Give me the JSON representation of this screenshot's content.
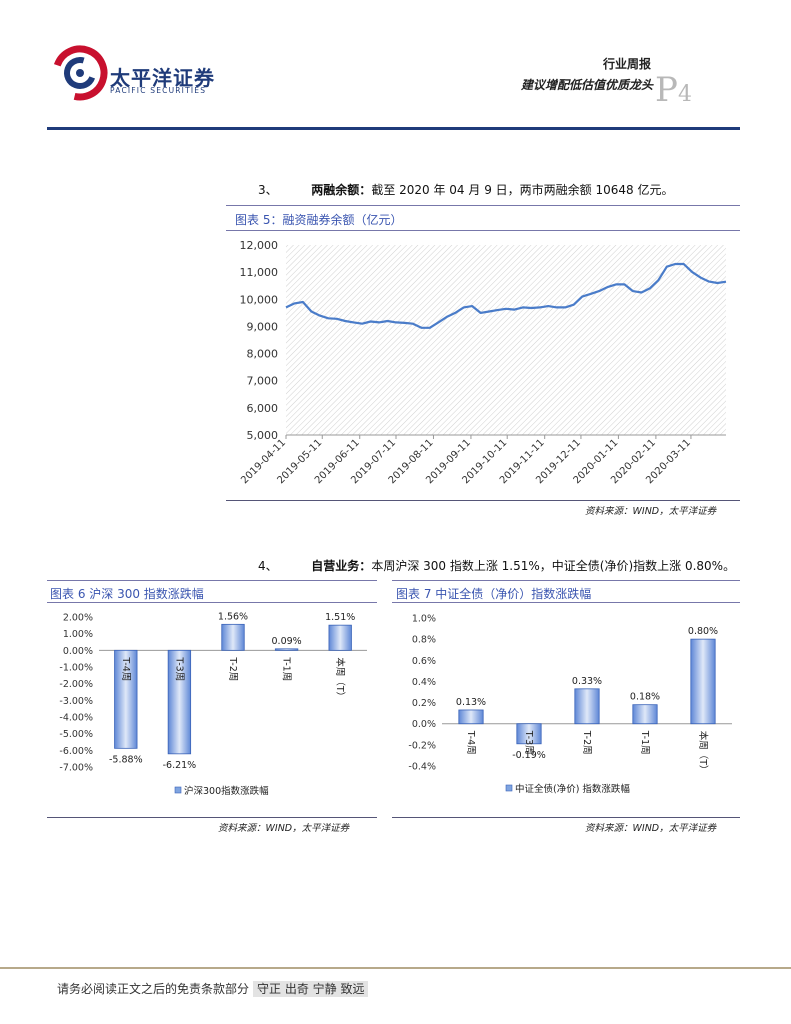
{
  "header": {
    "logo_cn": "太平洋证券",
    "logo_en": "PACIFIC SECURITIES",
    "report_type": "行业周报",
    "report_title": "建议增配低估值优质龙头",
    "page_prefix": "P",
    "page_number": "4"
  },
  "section3": {
    "number": "3、",
    "heading": "两融余额：",
    "text": "截至 2020 年 04 月 9 日，两市两融余额 10648 亿元。"
  },
  "figure5": {
    "title": "图表 5：融资融券余额（亿元）",
    "source": "资料来源：WIND，太平洋证券"
  },
  "section4": {
    "number": "4、",
    "heading": "自营业务：",
    "text": "本周沪深 300 指数上涨 1.51%，中证全债(净价)指数上涨 0.80%。"
  },
  "figure6": {
    "title": "图表 6  沪深 300 指数涨跌幅",
    "source": "资料来源：WIND，太平洋证券"
  },
  "figure7": {
    "title": "图表 7  中证全债（净价）指数涨跌幅",
    "source": "资料来源：WIND，太平洋证券"
  },
  "footer": {
    "disclaimer": "请务必阅读正文之后的免责条款部分",
    "slogan": "守正 出奇 宁静 致远"
  },
  "chart_data": [
    {
      "type": "line",
      "x_ticks": [
        "2019-04-11",
        "2019-05-11",
        "2019-06-11",
        "2019-07-11",
        "2019-08-11",
        "2019-09-11",
        "2019-10-11",
        "2019-11-11",
        "2019-12-11",
        "2020-01-11",
        "2020-02-11",
        "2020-03-11"
      ],
      "y_ticks": [
        "12,000",
        "11,000",
        "10,000",
        "9,000",
        "8,000",
        "7,000",
        "6,000",
        "5,000"
      ],
      "ylim": [
        5000,
        12000
      ],
      "color": "#4a7cc9",
      "series": [
        {
          "x": [
            "2019-04-11",
            "2019-04-18",
            "2019-04-25",
            "2019-05-02",
            "2019-05-09",
            "2019-05-16",
            "2019-05-23",
            "2019-05-30",
            "2019-06-06",
            "2019-06-13",
            "2019-06-20",
            "2019-06-27",
            "2019-07-04",
            "2019-07-11",
            "2019-07-18",
            "2019-07-25",
            "2019-08-01",
            "2019-08-08",
            "2019-08-15",
            "2019-08-22",
            "2019-08-29",
            "2019-09-05",
            "2019-09-12",
            "2019-09-19",
            "2019-09-26",
            "2019-10-03",
            "2019-10-10",
            "2019-10-17",
            "2019-10-24",
            "2019-10-31",
            "2019-11-07",
            "2019-11-14",
            "2019-11-21",
            "2019-11-28",
            "2019-12-05",
            "2019-12-12",
            "2019-12-19",
            "2019-12-26",
            "2020-01-02",
            "2020-01-09",
            "2020-01-16",
            "2020-01-23",
            "2020-01-30",
            "2020-02-06",
            "2020-02-13",
            "2020-02-20",
            "2020-02-27",
            "2020-03-05",
            "2020-03-12",
            "2020-03-19",
            "2020-03-26",
            "2020-04-02",
            "2020-04-09"
          ],
          "values": [
            9700,
            9850,
            9900,
            9550,
            9400,
            9300,
            9280,
            9200,
            9150,
            9100,
            9180,
            9150,
            9200,
            9150,
            9130,
            9100,
            8950,
            8950,
            9150,
            9350,
            9500,
            9700,
            9750,
            9500,
            9550,
            9600,
            9650,
            9620,
            9700,
            9680,
            9700,
            9750,
            9700,
            9700,
            9800,
            10100,
            10200,
            10300,
            10450,
            10550,
            10550,
            10300,
            10250,
            10400,
            10700,
            11200,
            11300,
            11300,
            11000,
            10800,
            10650,
            10600,
            10648
          ]
        }
      ]
    },
    {
      "type": "bar",
      "categories": [
        "T-4周",
        "T-3周",
        "T-2周",
        "T-1周",
        "本周（T）"
      ],
      "values": [
        -5.88,
        -6.21,
        1.56,
        0.09,
        1.51
      ],
      "labels": [
        "-5.88%",
        "-6.21%",
        "1.56%",
        "0.09%",
        "1.51%"
      ],
      "y_ticks": [
        "2.00%",
        "1.00%",
        "0.00%",
        "-1.00%",
        "-2.00%",
        "-3.00%",
        "-4.00%",
        "-5.00%",
        "-6.00%",
        "-7.00%"
      ],
      "ylim": [
        -7,
        2
      ],
      "legend": "沪深300指数涨跌幅",
      "legend_position": "bottom"
    },
    {
      "type": "bar",
      "categories": [
        "T-4周",
        "T-3周",
        "T-2周",
        "T-1周",
        "本周（T）"
      ],
      "values": [
        0.13,
        -0.19,
        0.33,
        0.18,
        0.8
      ],
      "labels": [
        "0.13%",
        "-0.19%",
        "0.33%",
        "0.18%",
        "0.80%"
      ],
      "y_ticks": [
        "1.0%",
        "0.8%",
        "0.6%",
        "0.4%",
        "0.2%",
        "0.0%",
        "-0.2%",
        "-0.4%"
      ],
      "ylim": [
        -0.4,
        1.0
      ],
      "legend": "中证全债(净价) 指数涨跌幅",
      "legend_position": "bottom"
    }
  ]
}
